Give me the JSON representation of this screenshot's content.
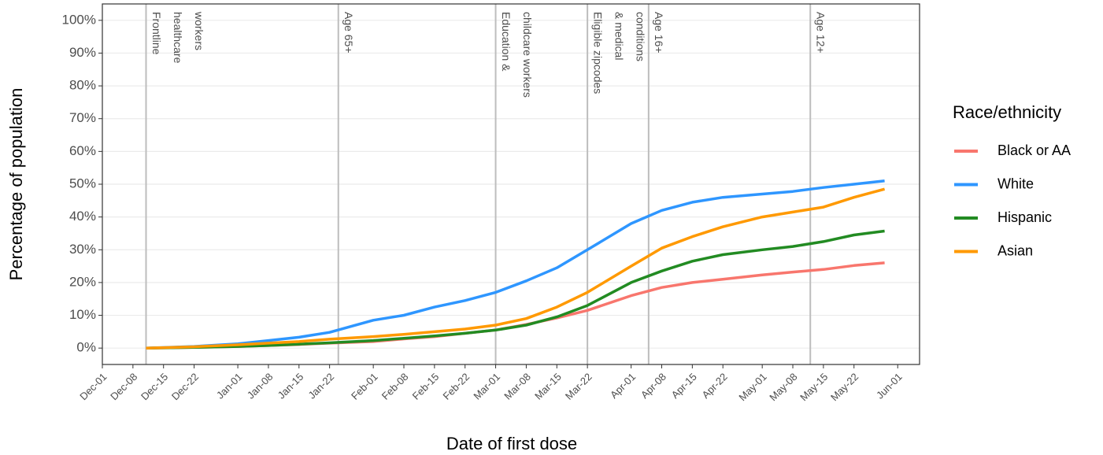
{
  "chart_data": {
    "type": "line",
    "x_label": "Date of first dose",
    "y_label": "Percentage of population",
    "legend_title": "Race/ethnicity",
    "legend_position": "right",
    "grid": true,
    "x": [
      "Dec-11",
      "Dec-22",
      "Jan-01",
      "Jan-08",
      "Jan-15",
      "Jan-22",
      "Feb-01",
      "Feb-08",
      "Feb-15",
      "Feb-22",
      "Mar-01",
      "Mar-08",
      "Mar-15",
      "Mar-22",
      "Apr-01",
      "Apr-08",
      "Apr-15",
      "Apr-22",
      "May-01",
      "May-08",
      "May-15",
      "May-22",
      "May-29"
    ],
    "xlim": [
      "Dec-01",
      "Jun-06"
    ],
    "xticks": [
      "Dec-01",
      "Dec-08",
      "Dec-15",
      "Dec-22",
      "Jan-01",
      "Jan-08",
      "Jan-15",
      "Jan-22",
      "Feb-01",
      "Feb-08",
      "Feb-15",
      "Feb-22",
      "Mar-01",
      "Mar-08",
      "Mar-15",
      "Mar-22",
      "Apr-01",
      "Apr-08",
      "Apr-15",
      "Apr-22",
      "May-01",
      "May-08",
      "May-15",
      "May-22",
      "Jun-01"
    ],
    "ylim": [
      -5,
      105
    ],
    "yticks": [
      {
        "value": 0,
        "label": "0%"
      },
      {
        "value": 10,
        "label": "10%"
      },
      {
        "value": 20,
        "label": "20%"
      },
      {
        "value": 30,
        "label": "30%"
      },
      {
        "value": 40,
        "label": "40%"
      },
      {
        "value": 50,
        "label": "50%"
      },
      {
        "value": 60,
        "label": "60%"
      },
      {
        "value": 70,
        "label": "70%"
      },
      {
        "value": 80,
        "label": "80%"
      },
      {
        "value": 90,
        "label": "90%"
      },
      {
        "value": 100,
        "label": "100%"
      }
    ],
    "annotations": [
      {
        "x": "Dec-11",
        "lines": [
          "Frontline",
          "healthcare",
          "workers"
        ]
      },
      {
        "x": "Jan-24",
        "lines": [
          "Age 65+"
        ]
      },
      {
        "x": "Mar-01",
        "lines": [
          "Education &",
          "childcare workers"
        ]
      },
      {
        "x": "Mar-22",
        "lines": [
          "Eligible zipcodes",
          "& medical",
          "conditions"
        ]
      },
      {
        "x": "Apr-05",
        "lines": [
          "Age 16+"
        ]
      },
      {
        "x": "May-12",
        "lines": [
          "Age 12+"
        ]
      }
    ],
    "series": [
      {
        "name": "Black or AA",
        "color": "#F8766D",
        "values": [
          0,
          0.2,
          0.5,
          0.8,
          1.1,
          1.5,
          2,
          2.8,
          3.5,
          4.5,
          5.5,
          7.2,
          9.2,
          11.5,
          16,
          18.5,
          20,
          21,
          22.3,
          23.2,
          24,
          25.2,
          26
        ]
      },
      {
        "name": "White",
        "color": "#2E96FF",
        "values": [
          0,
          0.5,
          1.3,
          2.3,
          3.3,
          4.8,
          8.5,
          10,
          12.5,
          14.5,
          17,
          20.5,
          24.5,
          30,
          38,
          42,
          44.5,
          46,
          47,
          47.8,
          49,
          50,
          51
        ]
      },
      {
        "name": "Hispanic",
        "color": "#228B22",
        "values": [
          0,
          0.2,
          0.5,
          0.8,
          1.2,
          1.6,
          2.3,
          3,
          3.7,
          4.5,
          5.5,
          7,
          9.5,
          13,
          20,
          23.5,
          26.5,
          28.5,
          30,
          31,
          32.5,
          34.5,
          35.7
        ]
      },
      {
        "name": "Asian",
        "color": "#FF9900",
        "values": [
          0,
          0.4,
          1,
          1.5,
          2,
          2.7,
          3.5,
          4.2,
          5,
          5.8,
          7,
          9,
          12.5,
          17,
          25,
          30.5,
          34,
          37,
          40,
          41.5,
          43,
          46,
          48.5
        ]
      }
    ]
  }
}
